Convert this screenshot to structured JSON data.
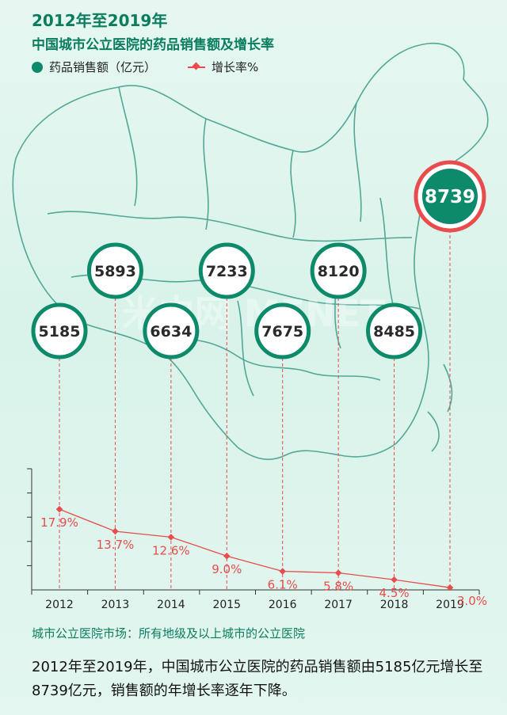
{
  "title": {
    "line1": "2012年至2019年",
    "line2": "中国城市公立医院的药品销售额及增长率"
  },
  "legend": {
    "sales_label": "药品销售额（亿元）",
    "growth_label": "增长率%"
  },
  "colors": {
    "primary": "#0d8a6a",
    "accent": "#e84c4c",
    "title": "#0a7d5f",
    "map_line": "#2f8f7f"
  },
  "chart_data": {
    "type": "line",
    "categories": [
      "2012",
      "2013",
      "2014",
      "2015",
      "2016",
      "2017",
      "2018",
      "2019"
    ],
    "series": [
      {
        "name": "药品销售额（亿元）",
        "values": [
          5185,
          5893,
          6634,
          7233,
          7675,
          8120,
          8485,
          8739
        ]
      },
      {
        "name": "增长率%",
        "values": [
          17.9,
          13.7,
          12.6,
          9.0,
          6.1,
          5.8,
          4.5,
          3.0
        ]
      }
    ],
    "value_labels": [
      "5185",
      "5893",
      "6634",
      "7233",
      "7675",
      "8120",
      "8485",
      "8739"
    ],
    "rate_labels": [
      "17.9%",
      "13.7%",
      "12.6%",
      "9.0%",
      "6.1%",
      "5.8%",
      "4.5%",
      "3.0%"
    ],
    "ylim": [
      0,
      25
    ],
    "grid": false
  },
  "caption": "城市公立医院市场：所有地级及以上城市的公立医院",
  "description": "2012年至2019年，中国城市公立医院的药品销售额由5185亿元增长至8739亿元，销售额的年增长率逐年下降。"
}
